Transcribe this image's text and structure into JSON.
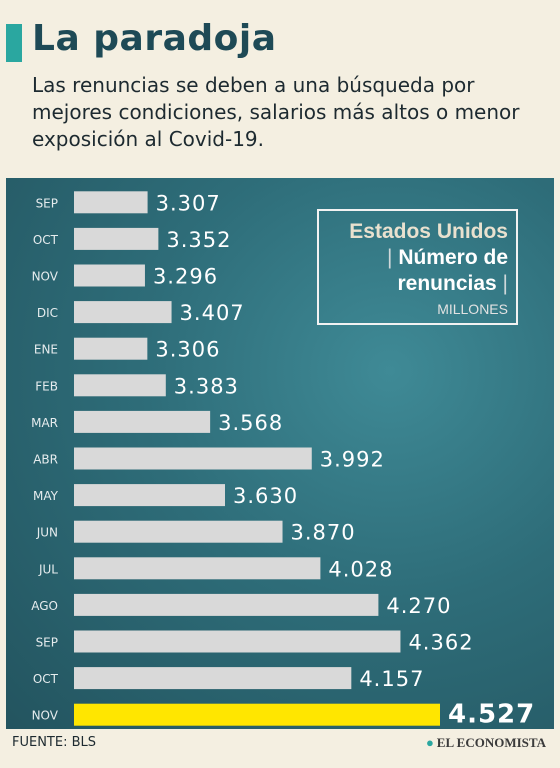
{
  "header": {
    "title": "La paradoja",
    "subtitle": "Las renuncias se deben a una búsqueda por mejores condiciones, salarios más altos o menor exposición al Covid-19."
  },
  "legend": {
    "country": "Estados Unidos",
    "metric": "Número de renuncias",
    "unit": "MILLONES"
  },
  "footer": {
    "source": "FUENTE: BLS",
    "brand": "EL ECONOMISTA"
  },
  "colors": {
    "bar": "#d9d9d9",
    "highlight": "#ffe600",
    "panel": "#2e6d79",
    "accent": "#2aa7a0"
  },
  "chart_data": {
    "type": "bar",
    "orientation": "horizontal",
    "categories": [
      "SEP",
      "OCT",
      "NOV",
      "DIC",
      "ENE",
      "FEB",
      "MAR",
      "ABR",
      "MAY",
      "JUN",
      "JUL",
      "AGO",
      "SEP",
      "OCT",
      "NOV"
    ],
    "values": [
      3.307,
      3.352,
      3.296,
      3.407,
      3.306,
      3.383,
      3.568,
      3.992,
      3.63,
      3.87,
      4.028,
      4.27,
      4.362,
      4.157,
      4.527
    ],
    "value_labels": [
      "3.307",
      "3.352",
      "3.296",
      "3.407",
      "3.306",
      "3.383",
      "3.568",
      "3.992",
      "3.630",
      "3.870",
      "4.028",
      "4.270",
      "4.362",
      "4.157",
      "4.527"
    ],
    "highlight_index": 14,
    "xlim": [
      3.0,
      4.527
    ],
    "grid": false
  }
}
